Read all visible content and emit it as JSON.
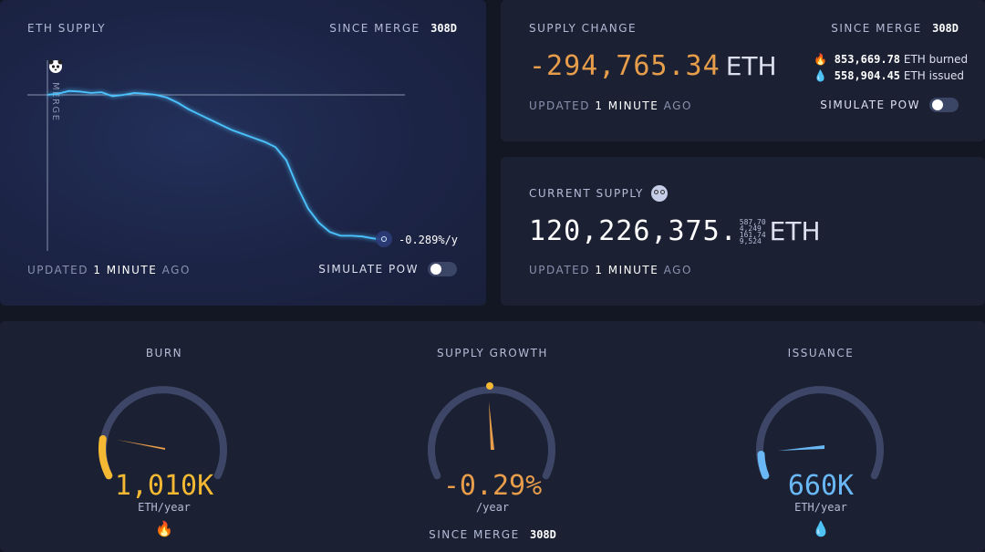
{
  "eth_supply": {
    "title": "ETH SUPPLY",
    "since_label": "SINCE MERGE",
    "since_value": "308d",
    "merge_label": "MERGE",
    "rate_label": "-0.289%/y",
    "updated_prefix": "UPDATED",
    "updated_value": "1 MINUTE",
    "updated_suffix": "AGO",
    "simulate_label": "SIMULATE PoW",
    "simulate_on": false
  },
  "chart_data": {
    "type": "line",
    "title": "ETH SUPPLY",
    "xlabel": "",
    "ylabel": "",
    "x_domain": [
      0,
      308
    ],
    "series": [
      {
        "values": [
          0.0,
          0.01,
          0.03,
          0.025,
          0.015,
          0.02,
          -0.01,
          0.0,
          0.015,
          0.01,
          0.0,
          -0.02,
          -0.06,
          -0.11,
          -0.15,
          -0.19,
          -0.23,
          -0.27,
          -0.3,
          -0.33,
          -0.36,
          -0.4,
          -0.5,
          -0.7,
          -0.87,
          -0.98,
          -1.05,
          -1.08,
          -1.08,
          -1.085,
          -1.1,
          -1.11
        ]
      }
    ],
    "annotations": [
      "MERGE",
      "-0.289%/y"
    ],
    "grid": false,
    "accent": "#4cc4ff"
  },
  "supply_change": {
    "title": "SUPPLY CHANGE",
    "since_label": "SINCE MERGE",
    "since_value": "308d",
    "value": "-294,765.34",
    "unit": "ETH",
    "burned_value": "853,669.78",
    "burned_label": "ETH burned",
    "issued_value": "558,904.45",
    "issued_label": "ETH issued",
    "updated_prefix": "UPDATED",
    "updated_value": "1 MINUTE",
    "updated_suffix": "AGO",
    "simulate_label": "SIMULATE PoW",
    "simulate_on": false,
    "color": "#e79d4a"
  },
  "current_supply": {
    "title": "CURRENT SUPPLY",
    "integer_part": "120,226,375.",
    "decimal_scroll": [
      "587,70",
      "4,249",
      "161,74",
      "9,524"
    ],
    "unit": "ETH",
    "updated_prefix": "UPDATED",
    "updated_value": "1 MINUTE",
    "updated_suffix": "AGO"
  },
  "gauges": [
    {
      "title": "BURN",
      "value": "1,010K",
      "unit": "ETH/year",
      "color": "#f4b833",
      "icon": "fire-icon",
      "fill_fraction": 0.09
    },
    {
      "title": "SUPPLY GROWTH",
      "value": "-0.29%",
      "unit": "/year",
      "color": "#e79d4a",
      "since_label": "SINCE MERGE",
      "since_value": "308d",
      "fill_fraction": 0.5
    },
    {
      "title": "ISSUANCE",
      "value": "660K",
      "unit": "ETH/year",
      "color": "#69b8f5",
      "icon": "droplet-icon",
      "fill_fraction": 0.06
    }
  ]
}
